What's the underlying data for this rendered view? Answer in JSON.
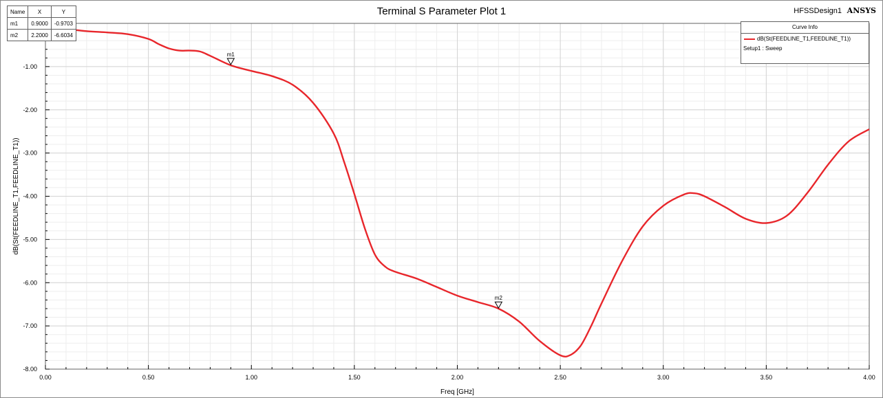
{
  "header": {
    "title": "Terminal S Parameter Plot 1",
    "design": "HFSSDesign1",
    "brand": "ANSYS"
  },
  "marker_table": {
    "headers": [
      "Name",
      "X",
      "Y"
    ],
    "rows": [
      [
        "m1",
        "0.9000",
        "-0.9703"
      ],
      [
        "m2",
        "2.2000",
        "-6.6034"
      ]
    ]
  },
  "curve_info": {
    "title": "Curve Info",
    "series_label": "dB(St(FEEDLINE_T1,FEEDLINE_T1))",
    "setup": "Setup1 : Sweep"
  },
  "colors": {
    "curve": "#e8262b",
    "grid": "#d4d4d4",
    "minor_grid": "#ededed"
  },
  "chart_data": {
    "type": "line",
    "title": "Terminal S Parameter Plot 1",
    "xlabel": "Freq [GHz]",
    "ylabel": "dB(St(FEEDLINE_T1,FEEDLINE_T1))",
    "xlim": [
      0,
      4
    ],
    "ylim": [
      -8,
      0
    ],
    "grid": true,
    "legend": "top-right",
    "xticks": [
      "0.00",
      "0.50",
      "1.00",
      "1.50",
      "2.00",
      "2.50",
      "3.00",
      "3.50",
      "4.00"
    ],
    "yticks": [
      "-1.00",
      "-2.00",
      "-3.00",
      "-4.00",
      "-5.00",
      "-6.00",
      "-7.00",
      "-8.00"
    ],
    "series": [
      {
        "name": "dB(St(FEEDLINE_T1,FEEDLINE_T1))",
        "x": [
          0.0,
          0.1,
          0.2,
          0.3,
          0.4,
          0.5,
          0.55,
          0.6,
          0.65,
          0.7,
          0.75,
          0.8,
          0.9,
          1.0,
          1.1,
          1.2,
          1.3,
          1.4,
          1.45,
          1.5,
          1.55,
          1.6,
          1.65,
          1.7,
          1.8,
          1.9,
          2.0,
          2.1,
          2.2,
          2.3,
          2.4,
          2.5,
          2.55,
          2.6,
          2.65,
          2.7,
          2.8,
          2.9,
          3.0,
          3.1,
          3.15,
          3.2,
          3.3,
          3.4,
          3.5,
          3.6,
          3.7,
          3.8,
          3.9,
          4.0
        ],
        "y": [
          -0.09,
          -0.13,
          -0.18,
          -0.21,
          -0.25,
          -0.36,
          -0.48,
          -0.58,
          -0.63,
          -0.63,
          -0.65,
          -0.75,
          -0.97,
          -1.1,
          -1.22,
          -1.42,
          -1.84,
          -2.55,
          -3.2,
          -3.95,
          -4.73,
          -5.35,
          -5.63,
          -5.75,
          -5.9,
          -6.1,
          -6.3,
          -6.45,
          -6.6,
          -6.9,
          -7.35,
          -7.68,
          -7.67,
          -7.45,
          -7.0,
          -6.48,
          -5.5,
          -4.7,
          -4.22,
          -3.96,
          -3.93,
          -4.0,
          -4.25,
          -4.52,
          -4.62,
          -4.45,
          -3.92,
          -3.27,
          -2.73,
          -2.45
        ]
      }
    ],
    "markers": [
      {
        "name": "m1",
        "x": 0.9,
        "y": -0.9703
      },
      {
        "name": "m2",
        "x": 2.2,
        "y": -6.6034
      }
    ]
  }
}
